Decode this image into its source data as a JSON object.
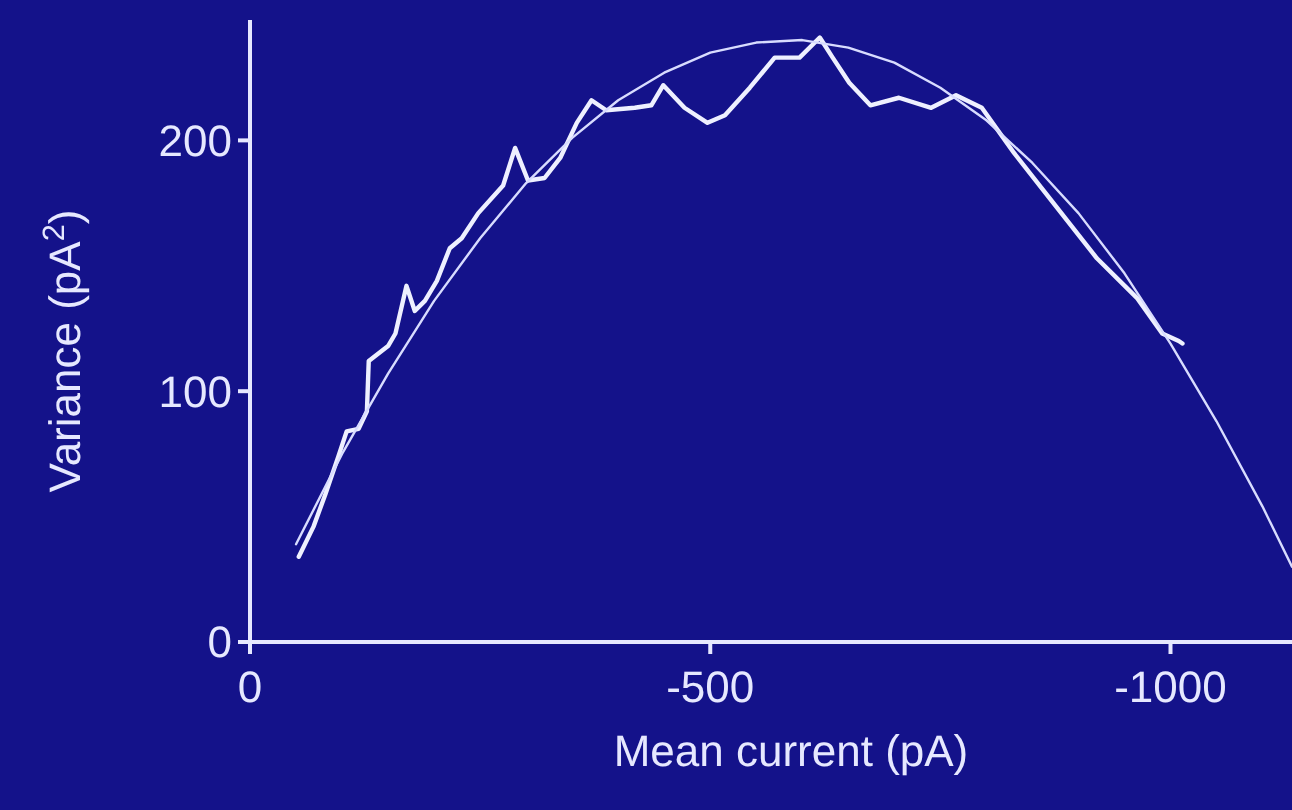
{
  "chart_data": {
    "type": "line",
    "xlabel": "Mean current (pA)",
    "ylabel": "Variance (pA$^{2}$)",
    "xlim": [
      0,
      -1132
    ],
    "ylim": [
      0,
      248
    ],
    "xticks": [
      0,
      -500,
      -1000
    ],
    "yticks": [
      0,
      100,
      200
    ],
    "grid": false,
    "marker": "none",
    "line_style": "solid",
    "series": [
      {
        "color": "#eef0ff",
        "x": [
          -53,
          -69,
          -82,
          -96,
          -105,
          -118,
          -127,
          -129,
          -150,
          -158,
          -170,
          -179,
          -190,
          -203,
          -217,
          -230,
          -248,
          -275,
          -288,
          -302,
          -320,
          -337,
          -355,
          -371,
          -387,
          -418,
          -436,
          -449,
          -472,
          -497,
          -516,
          -543,
          -570,
          -597,
          -619,
          -633,
          -651,
          -674,
          -705,
          -740,
          -767,
          -795,
          -830,
          -875,
          -920,
          -964,
          -991,
          -1009,
          -1013
        ],
        "values": [
          34,
          46,
          59,
          74,
          84,
          85,
          92,
          112,
          118,
          123,
          142,
          132,
          136,
          144,
          157,
          161,
          171,
          182,
          197,
          184,
          185,
          193,
          207,
          216,
          212,
          213,
          214,
          222,
          213,
          207,
          210,
          221,
          233,
          233,
          241,
          233,
          223,
          214,
          217,
          213,
          218,
          213,
          195,
          174,
          153,
          137,
          123,
          120,
          119
        ]
      },
      {
        "color": "#d8dcff",
        "x": [
          -50,
          -100,
          -150,
          -200,
          -250,
          -300,
          -350,
          -400,
          -450,
          -500,
          -550,
          -600,
          -650,
          -700,
          -750,
          -800,
          -850,
          -900,
          -950,
          -1000,
          -1050,
          -1100,
          -1132
        ],
        "values": [
          39,
          75,
          107,
          136,
          161,
          183,
          201,
          216,
          227,
          235,
          239,
          240,
          237,
          231,
          221,
          208,
          191,
          171,
          147,
          119,
          88,
          54,
          30
        ]
      }
    ]
  }
}
